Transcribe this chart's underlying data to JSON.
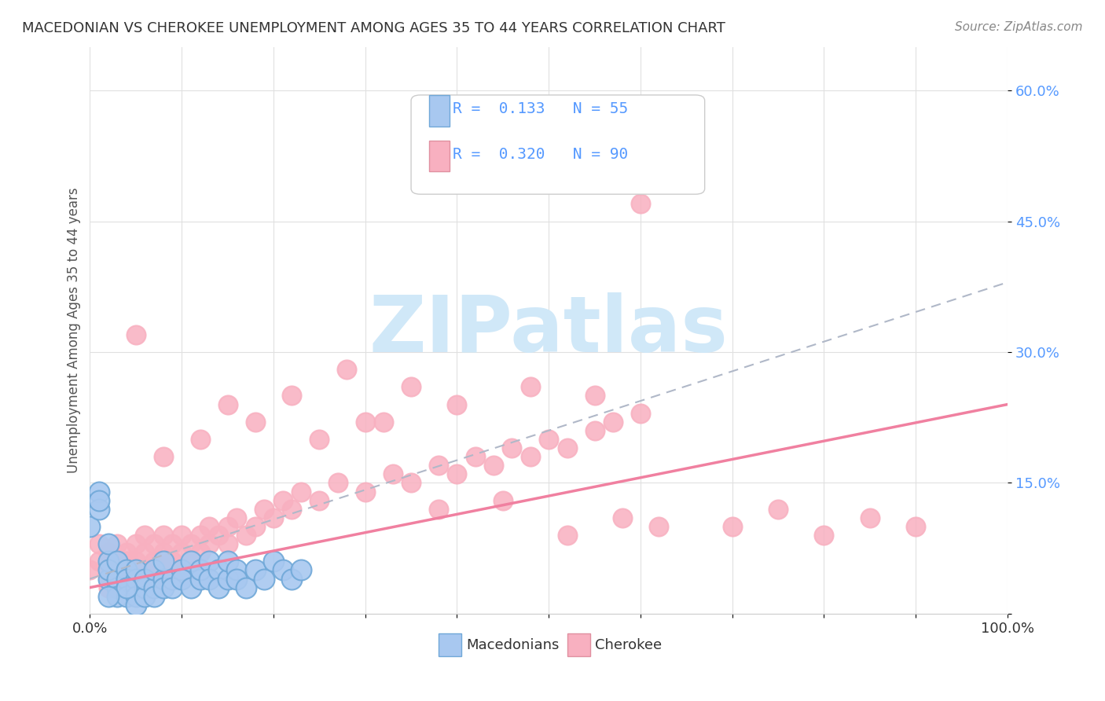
{
  "title": "MACEDONIAN VS CHEROKEE UNEMPLOYMENT AMONG AGES 35 TO 44 YEARS CORRELATION CHART",
  "source": "Source: ZipAtlas.com",
  "xlabel": "",
  "ylabel": "Unemployment Among Ages 35 to 44 years",
  "xlim": [
    0,
    1.0
  ],
  "ylim": [
    0,
    0.65
  ],
  "xticks": [
    0.0,
    0.1,
    0.2,
    0.3,
    0.4,
    0.5,
    0.6,
    0.7,
    0.8,
    0.9,
    1.0
  ],
  "xticklabels": [
    "0.0%",
    "",
    "",
    "",
    "",
    "",
    "",
    "",
    "",
    "",
    "100.0%"
  ],
  "yticks": [
    0.0,
    0.15,
    0.3,
    0.45,
    0.6
  ],
  "yticklabels": [
    "",
    "15.0%",
    "30.0%",
    "45.0%",
    "60.0%"
  ],
  "macedonian_R": 0.133,
  "macedonian_N": 55,
  "cherokee_R": 0.32,
  "cherokee_N": 90,
  "macedonian_color": "#a8c8f0",
  "cherokee_color": "#f8b0c0",
  "macedonian_line_color": "#b0c8e8",
  "cherokee_line_color": "#f080a0",
  "watermark": "ZIPatlas",
  "watermark_color": "#d0e8f8",
  "background_color": "#ffffff",
  "macedonian_x": [
    0.0,
    0.01,
    0.01,
    0.02,
    0.02,
    0.02,
    0.02,
    0.03,
    0.03,
    0.03,
    0.03,
    0.04,
    0.04,
    0.04,
    0.04,
    0.05,
    0.05,
    0.05,
    0.05,
    0.05,
    0.06,
    0.06,
    0.06,
    0.07,
    0.07,
    0.07,
    0.08,
    0.08,
    0.08,
    0.09,
    0.09,
    0.1,
    0.1,
    0.11,
    0.11,
    0.12,
    0.12,
    0.13,
    0.13,
    0.14,
    0.14,
    0.15,
    0.15,
    0.16,
    0.16,
    0.17,
    0.18,
    0.19,
    0.2,
    0.21,
    0.22,
    0.23,
    0.04,
    0.02,
    0.01
  ],
  "macedonian_y": [
    0.1,
    0.14,
    0.12,
    0.04,
    0.06,
    0.08,
    0.05,
    0.03,
    0.04,
    0.06,
    0.02,
    0.05,
    0.03,
    0.04,
    0.02,
    0.03,
    0.04,
    0.02,
    0.05,
    0.01,
    0.03,
    0.02,
    0.04,
    0.03,
    0.05,
    0.02,
    0.04,
    0.03,
    0.06,
    0.04,
    0.03,
    0.05,
    0.04,
    0.06,
    0.03,
    0.04,
    0.05,
    0.06,
    0.04,
    0.05,
    0.03,
    0.04,
    0.06,
    0.05,
    0.04,
    0.03,
    0.05,
    0.04,
    0.06,
    0.05,
    0.04,
    0.05,
    0.03,
    0.02,
    0.13
  ],
  "cherokee_x": [
    0.0,
    0.01,
    0.01,
    0.02,
    0.02,
    0.02,
    0.02,
    0.03,
    0.03,
    0.03,
    0.04,
    0.04,
    0.04,
    0.04,
    0.05,
    0.05,
    0.05,
    0.05,
    0.06,
    0.06,
    0.06,
    0.07,
    0.07,
    0.07,
    0.08,
    0.08,
    0.08,
    0.09,
    0.09,
    0.1,
    0.1,
    0.1,
    0.11,
    0.11,
    0.12,
    0.12,
    0.13,
    0.13,
    0.14,
    0.15,
    0.15,
    0.16,
    0.17,
    0.18,
    0.19,
    0.2,
    0.21,
    0.22,
    0.23,
    0.25,
    0.27,
    0.3,
    0.33,
    0.35,
    0.38,
    0.4,
    0.42,
    0.44,
    0.46,
    0.48,
    0.5,
    0.52,
    0.55,
    0.57,
    0.6,
    0.28,
    0.18,
    0.22,
    0.3,
    0.35,
    0.08,
    0.12,
    0.15,
    0.05,
    0.25,
    0.32,
    0.4,
    0.48,
    0.55,
    0.6,
    0.7,
    0.75,
    0.8,
    0.85,
    0.38,
    0.45,
    0.52,
    0.58,
    0.62,
    0.9
  ],
  "cherokee_y": [
    0.05,
    0.08,
    0.06,
    0.04,
    0.07,
    0.05,
    0.03,
    0.06,
    0.04,
    0.08,
    0.05,
    0.07,
    0.04,
    0.06,
    0.05,
    0.08,
    0.04,
    0.06,
    0.07,
    0.05,
    0.09,
    0.06,
    0.08,
    0.04,
    0.07,
    0.05,
    0.09,
    0.06,
    0.08,
    0.07,
    0.09,
    0.05,
    0.08,
    0.06,
    0.09,
    0.07,
    0.1,
    0.08,
    0.09,
    0.1,
    0.08,
    0.11,
    0.09,
    0.1,
    0.12,
    0.11,
    0.13,
    0.12,
    0.14,
    0.13,
    0.15,
    0.14,
    0.16,
    0.15,
    0.17,
    0.16,
    0.18,
    0.17,
    0.19,
    0.18,
    0.2,
    0.19,
    0.21,
    0.22,
    0.23,
    0.28,
    0.22,
    0.25,
    0.22,
    0.26,
    0.18,
    0.2,
    0.24,
    0.32,
    0.2,
    0.22,
    0.24,
    0.26,
    0.25,
    0.47,
    0.1,
    0.12,
    0.09,
    0.11,
    0.12,
    0.13,
    0.09,
    0.11,
    0.1,
    0.1
  ]
}
